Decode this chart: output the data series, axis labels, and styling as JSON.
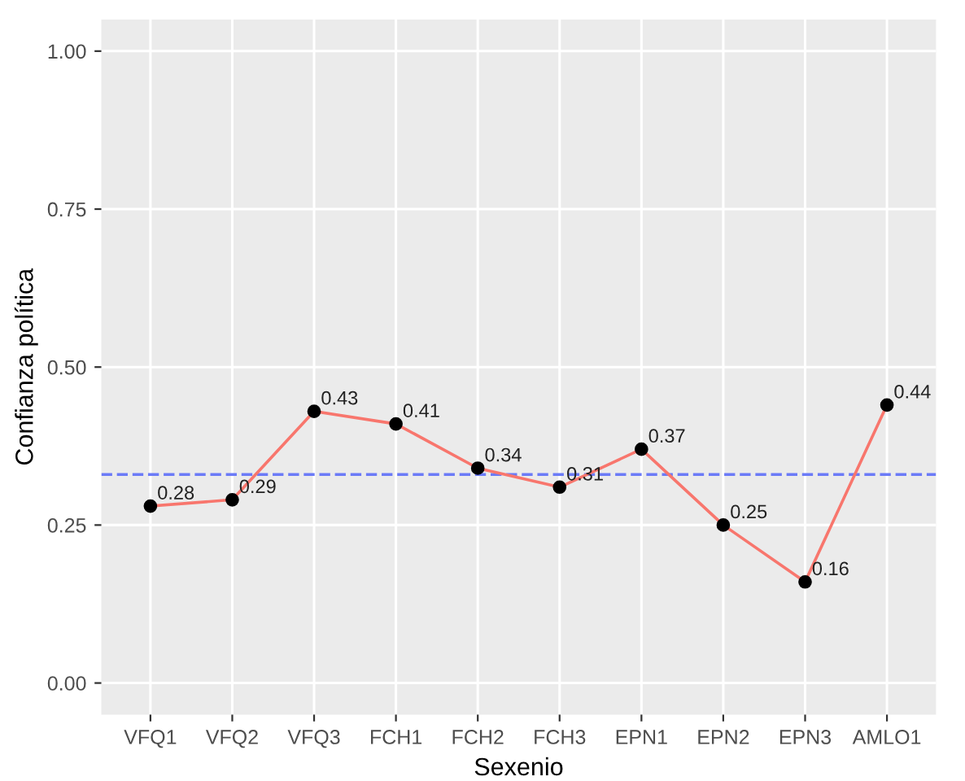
{
  "chart_data": {
    "type": "line",
    "xlabel": "Sexenio",
    "ylabel": "Confianza política",
    "categories": [
      "VFQ1",
      "VFQ2",
      "VFQ3",
      "FCH1",
      "FCH2",
      "FCH3",
      "EPN1",
      "EPN2",
      "EPN3",
      "AMLO1"
    ],
    "series": [
      {
        "color": "#f8766d",
        "values": [
          0.28,
          0.29,
          0.43,
          0.41,
          0.34,
          0.31,
          0.37,
          0.25,
          0.16,
          0.44
        ]
      }
    ],
    "ylim": [
      -0.05,
      1.05
    ],
    "yticks": [
      "0.00",
      "0.25",
      "0.50",
      "0.75",
      "1.00"
    ],
    "ref_lines": [
      {
        "axis": "y",
        "value": 0.33,
        "color": "#6b7bf7",
        "line_style": "dashed"
      }
    ],
    "data_labels": true,
    "marker": "circle",
    "line_style": "solid",
    "grid": true,
    "legend": false
  }
}
